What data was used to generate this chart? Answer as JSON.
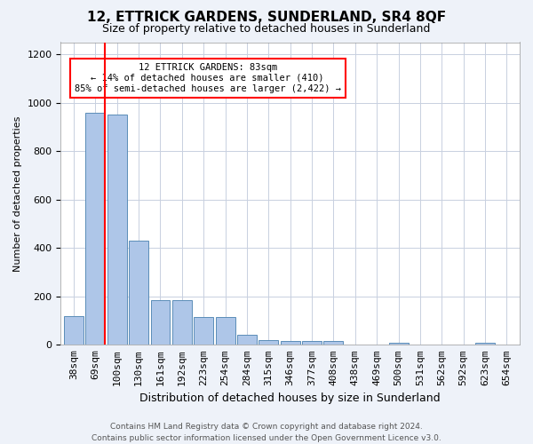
{
  "title": "12, ETTRICK GARDENS, SUNDERLAND, SR4 8QF",
  "subtitle": "Size of property relative to detached houses in Sunderland",
  "xlabel": "Distribution of detached houses by size in Sunderland",
  "ylabel": "Number of detached properties",
  "footer_line1": "Contains HM Land Registry data © Crown copyright and database right 2024.",
  "footer_line2": "Contains public sector information licensed under the Open Government Licence v3.0.",
  "categories": [
    "38sqm",
    "69sqm",
    "100sqm",
    "130sqm",
    "161sqm",
    "192sqm",
    "223sqm",
    "254sqm",
    "284sqm",
    "315sqm",
    "346sqm",
    "377sqm",
    "408sqm",
    "438sqm",
    "469sqm",
    "500sqm",
    "531sqm",
    "562sqm",
    "592sqm",
    "623sqm",
    "654sqm"
  ],
  "values": [
    120,
    960,
    950,
    430,
    185,
    185,
    115,
    115,
    40,
    20,
    15,
    15,
    15,
    0,
    0,
    10,
    0,
    0,
    0,
    10,
    0
  ],
  "bar_color": "#aec6e8",
  "bar_edge_color": "#5b8db8",
  "vline_position": 1.42,
  "vline_color": "red",
  "annotation_line1": "12 ETTRICK GARDENS: 83sqm",
  "annotation_line2": "← 14% of detached houses are smaller (410)",
  "annotation_line3": "85% of semi-detached houses are larger (2,422) →",
  "annotation_box_color": "white",
  "annotation_box_edge_color": "red",
  "ylim": [
    0,
    1250
  ],
  "yticks": [
    0,
    200,
    400,
    600,
    800,
    1000,
    1200
  ],
  "bg_color": "#eef2f9",
  "plot_bg_color": "white",
  "grid_color": "#c8d0e0",
  "title_fontsize": 11,
  "subtitle_fontsize": 9,
  "ylabel_fontsize": 8,
  "xlabel_fontsize": 9,
  "tick_fontsize": 8,
  "footer_fontsize": 6.5,
  "annot_fontsize": 7.5
}
